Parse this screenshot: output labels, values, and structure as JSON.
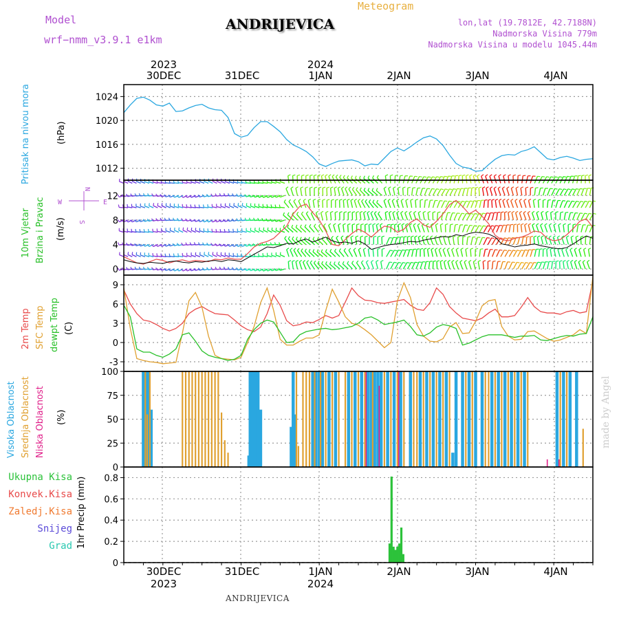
{
  "header": {
    "model_label": "Model",
    "model_name": "wrf−nmm_v3.9.1  e1km",
    "station": "ANDRIJEVICA",
    "meteogram": "Meteogram",
    "lonlat": "lon,lat (19.7812E, 42.7188N)",
    "elevation": "Nadmorska Visina 779m",
    "model_elevation": "Nadmorska Visina u modelu 1045.44m",
    "footer_station": "ANDRIJEVICA",
    "credit": "made by Angel"
  },
  "time_axis": {
    "day_labels": [
      "30DEC",
      "31DEC",
      "1JAN",
      "2JAN",
      "3JAN",
      "4JAN"
    ],
    "year_labels": [
      {
        "day_index": 0,
        "year": "2023"
      },
      {
        "day_index": 2,
        "year": "2024"
      }
    ]
  },
  "colors": {
    "pressure": "#2aa7e0",
    "temp": "#e84a4a",
    "sfc": "#e0a030",
    "dew": "#28c028",
    "high_cloud": "#2aa7e0",
    "mid_cloud": "#e0a030",
    "low_cloud": "#e0208a",
    "precip_total": "#2cc23a",
    "convective": "#e84a4a",
    "freezing": "#f07a30",
    "snow": "#5a4ad8",
    "graupel": "#28c8b0",
    "model": "#b050d0"
  },
  "chart_data": [
    {
      "type": "line",
      "panel": "pressure",
      "ylabel": [
        "Pritisak na nivou mora",
        "(hPa)"
      ],
      "ylim": [
        1010,
        1026
      ],
      "yticks": [
        1012,
        1016,
        1020,
        1024
      ],
      "grid": true,
      "series": [
        {
          "values_hours_0_to_72": [
            1021.3,
            1022.6,
            1023.7,
            1023.9,
            1023.4,
            1022.6,
            1022.4,
            1022.9,
            1021.5,
            1021.6,
            1022.1,
            1022.5,
            1022.7,
            1022.1,
            1021.8,
            1021.7,
            1020.5,
            1017.8,
            1017.2,
            1017.5,
            1018.8,
            1019.8,
            1019.8,
            1019.0,
            1018.1,
            1016.8,
            1015.9,
            1015.4,
            1014.8,
            1013.9,
            1012.7,
            1012.3,
            1012.8,
            1013.2,
            1013.3,
            1013.4,
            1013.1,
            1012.4,
            1012.7,
            1012.6,
            1013.7,
            1014.8,
            1015.4,
            1014.9,
            1015.6,
            1016.4,
            1017.1,
            1017.4,
            1016.9,
            1015.8,
            1014.2,
            1012.8,
            1012.2,
            1012.0,
            1011.5,
            1011.6,
            1012.6,
            1013.5,
            1014.1,
            1014.3,
            1014.2,
            1014.8,
            1015.1,
            1015.6,
            1014.6,
            1013.6,
            1013.4,
            1013.8,
            1014.0,
            1013.7,
            1013.3,
            1013.5,
            1013.6
          ]
        }
      ]
    },
    {
      "type": "line",
      "panel": "wind",
      "ylabel": [
        "10m Vjetar",
        "Brzina i Pravac",
        "(m/s)"
      ],
      "compass": {
        "n": "N",
        "s": "S",
        "w": "W",
        "e": "E"
      },
      "ylim": [
        -1,
        14.5
      ],
      "yticks": [
        0,
        4,
        8,
        12
      ],
      "grid": true,
      "series": [
        {
          "name": "speed",
          "values_hours_0_to_72": [
            1.5,
            1.2,
            1.0,
            0.9,
            1.1,
            1.0,
            0.9,
            1.2,
            1.3,
            1.1,
            1.0,
            1.2,
            1.1,
            1.3,
            1.4,
            1.2,
            1.5,
            1.4,
            1.2,
            1.8,
            2.4,
            3.0,
            3.6,
            3.5,
            3.8,
            4.2,
            4.1,
            4.6,
            4.9,
            4.4,
            4.8,
            5.2,
            4.6,
            4.3,
            4.4,
            4.2,
            4.6,
            4.1,
            3.2,
            3.5,
            3.8,
            4.0,
            4.1,
            4.3,
            4.5,
            4.4,
            4.7,
            4.9,
            5.1,
            5.3,
            5.2,
            5.6,
            5.4,
            5.8,
            6.0,
            5.9,
            5.7,
            5.2,
            4.1,
            3.9,
            3.6,
            3.8,
            3.9,
            4.1,
            3.8,
            3.6,
            3.4,
            3.3,
            3.5,
            4.1,
            4.8,
            5.4,
            5.0
          ]
        },
        {
          "name": "gust",
          "values_hours_0_to_72": [
            2.0,
            1.5,
            1.0,
            0.8,
            1.2,
            1.6,
            1.4,
            1.0,
            1.3,
            1.5,
            1.2,
            1.4,
            1.3,
            1.2,
            1.6,
            1.5,
            1.8,
            1.6,
            1.6,
            2.5,
            3.6,
            4.2,
            4.5,
            5.0,
            6.0,
            7.0,
            9.0,
            10.2,
            10.6,
            9.2,
            8.0,
            6.2,
            4.0,
            3.8,
            4.8,
            5.8,
            6.5,
            6.0,
            5.2,
            6.2,
            7.0,
            6.8,
            6.0,
            6.5,
            7.6,
            8.2,
            7.2,
            6.8,
            7.8,
            9.0,
            10.5,
            11.2,
            10.2,
            9.0,
            9.6,
            8.6,
            7.4,
            5.5,
            4.8,
            4.6,
            5.0,
            5.2,
            5.6,
            6.2,
            6.0,
            5.0,
            4.6,
            4.8,
            5.6,
            6.6,
            7.8,
            8.2,
            6.8
          ]
        }
      ]
    },
    {
      "type": "line",
      "panel": "temperature",
      "ylabel": [
        "2m Temp",
        "SFC Temp",
        "dewpt Temp",
        "(C)"
      ],
      "ylim": [
        -4.5,
        10.5
      ],
      "yticks": [
        -3,
        0,
        3,
        6,
        9
      ],
      "grid": true,
      "series": [
        {
          "name": "2m Temp",
          "values_hours_0_to_72": [
            8.2,
            6.0,
            4.5,
            3.5,
            3.3,
            2.8,
            2.2,
            1.8,
            2.2,
            3.0,
            4.5,
            5.2,
            5.6,
            5.0,
            4.5,
            4.4,
            4.3,
            3.5,
            2.6,
            2.0,
            1.7,
            2.4,
            4.5,
            7.4,
            5.8,
            3.4,
            2.6,
            2.8,
            3.2,
            3.1,
            3.6,
            4.2,
            3.8,
            4.2,
            6.3,
            8.5,
            7.3,
            6.6,
            6.5,
            6.2,
            6.1,
            6.3,
            6.5,
            6.7,
            5.8,
            5.2,
            5.0,
            6.2,
            8.5,
            7.5,
            5.6,
            4.6,
            3.8,
            3.6,
            3.4,
            3.8,
            4.6,
            5.2,
            4.0,
            4.0,
            4.2,
            5.5,
            7.0,
            5.6,
            4.8,
            4.6,
            4.6,
            4.4,
            4.8,
            5.0,
            4.6,
            4.8,
            9.6
          ]
        },
        {
          "name": "SFC Temp",
          "values_hours_0_to_72": [
            8.5,
            2.2,
            -2.5,
            -2.8,
            -3.0,
            -3.1,
            -3.3,
            -3.2,
            -3.1,
            1.5,
            6.5,
            7.8,
            5.5,
            1.0,
            -2.0,
            -2.5,
            -2.6,
            -2.7,
            -2.3,
            0.0,
            2.5,
            6.2,
            8.5,
            5.0,
            0.5,
            -0.4,
            -0.4,
            0.2,
            0.7,
            0.7,
            1.2,
            5.0,
            8.3,
            6.3,
            4.0,
            3.0,
            2.7,
            2.0,
            1.2,
            0.2,
            -0.8,
            0.0,
            6.5,
            9.3,
            7.0,
            2.8,
            1.0,
            0.2,
            0.1,
            0.6,
            2.4,
            3.1,
            1.4,
            1.5,
            3.3,
            5.7,
            6.5,
            6.7,
            2.5,
            1.0,
            0.4,
            0.5,
            1.7,
            1.8,
            1.2,
            0.6,
            0.2,
            0.4,
            0.8,
            1.2,
            2.0,
            1.4,
            10.3
          ]
        },
        {
          "name": "dewpt Temp",
          "values_hours_0_to_72": [
            5.8,
            4.0,
            -1.0,
            -1.5,
            -1.5,
            -2.0,
            -2.3,
            -1.8,
            -1.0,
            1.2,
            1.5,
            0.2,
            -1.3,
            -2.0,
            -2.3,
            -2.5,
            -2.8,
            -2.6,
            -2.0,
            0.5,
            2.0,
            3.0,
            3.5,
            3.2,
            1.6,
            0.0,
            0.1,
            1.2,
            1.7,
            1.9,
            2.1,
            2.2,
            2.0,
            2.1,
            2.3,
            2.5,
            3.0,
            3.8,
            4.0,
            3.5,
            2.8,
            3.0,
            3.2,
            3.5,
            2.5,
            1.2,
            1.0,
            1.5,
            2.4,
            2.8,
            2.6,
            2.2,
            -0.4,
            -0.1,
            0.4,
            0.9,
            1.2,
            1.2,
            1.2,
            1.0,
            0.8,
            1.0,
            1.0,
            1.1,
            0.4,
            0.3,
            0.6,
            0.9,
            1.1,
            1.0,
            1.3,
            1.4,
            4.0
          ]
        }
      ]
    },
    {
      "type": "bar",
      "panel": "cloud",
      "ylabel": [
        "Visoka Oblacnost",
        "Srednja Oblacnost",
        "Niska Oblacnost",
        "(%)"
      ],
      "ylim": [
        0,
        100
      ],
      "yticks": [
        0,
        25,
        50,
        75,
        100
      ],
      "grid": true,
      "series": [
        {
          "name": "Visoka Oblacnost",
          "bars": [
            [
              3.0,
              100
            ],
            [
              3.5,
              100
            ],
            [
              3.8,
              100
            ],
            [
              4.2,
              60
            ],
            [
              19.2,
              12
            ],
            [
              19.4,
              100
            ],
            [
              19.8,
              100
            ],
            [
              20.2,
              100
            ],
            [
              20.6,
              100
            ],
            [
              21.0,
              60
            ],
            [
              25.7,
              42
            ],
            [
              26.0,
              100
            ],
            [
              26.3,
              55
            ],
            [
              29.0,
              100
            ],
            [
              29.5,
              100
            ],
            [
              30.0,
              100
            ],
            [
              30.5,
              100
            ],
            [
              31.5,
              100
            ],
            [
              32.5,
              100
            ],
            [
              34.5,
              100
            ],
            [
              35.5,
              100
            ],
            [
              36.5,
              100
            ],
            [
              37.5,
              100
            ],
            [
              38.0,
              100
            ],
            [
              38.5,
              100
            ],
            [
              39.0,
              100
            ],
            [
              39.5,
              100
            ],
            [
              40.5,
              100
            ],
            [
              41.5,
              100
            ],
            [
              42.5,
              100
            ],
            [
              44.0,
              100
            ],
            [
              45.5,
              100
            ],
            [
              46.5,
              100
            ],
            [
              47.5,
              100
            ],
            [
              48.5,
              100
            ],
            [
              49.5,
              100
            ],
            [
              50.5,
              15
            ],
            [
              51.0,
              100
            ],
            [
              52.0,
              100
            ],
            [
              53.0,
              100
            ],
            [
              54.0,
              100
            ],
            [
              55.0,
              100
            ],
            [
              56.5,
              100
            ],
            [
              57.5,
              100
            ],
            [
              58.5,
              100
            ],
            [
              59.5,
              100
            ],
            [
              60.5,
              100
            ],
            [
              61.5,
              100
            ],
            [
              66.5,
              100
            ],
            [
              67.5,
              100
            ],
            [
              68.5,
              100
            ],
            [
              69.5,
              100
            ]
          ]
        },
        {
          "name": "Srednja Oblacnost",
          "bars": [
            [
              3.3,
              100
            ],
            [
              3.6,
              55
            ],
            [
              4.0,
              100
            ],
            [
              9.0,
              100
            ],
            [
              9.5,
              100
            ],
            [
              10.0,
              100
            ],
            [
              10.5,
              100
            ],
            [
              11.0,
              100
            ],
            [
              11.5,
              100
            ],
            [
              12.0,
              100
            ],
            [
              12.5,
              100
            ],
            [
              13.0,
              100
            ],
            [
              13.5,
              100
            ],
            [
              14.0,
              100
            ],
            [
              14.5,
              100
            ],
            [
              15.0,
              57
            ],
            [
              15.5,
              28
            ],
            [
              16.0,
              15
            ],
            [
              26.5,
              100
            ],
            [
              26.8,
              22
            ],
            [
              27.5,
              100
            ],
            [
              28.0,
              100
            ],
            [
              28.5,
              100
            ],
            [
              29.3,
              100
            ],
            [
              30.2,
              100
            ],
            [
              31.0,
              100
            ],
            [
              32.0,
              100
            ],
            [
              33.0,
              100
            ],
            [
              34.0,
              100
            ],
            [
              35.0,
              100
            ],
            [
              36.0,
              100
            ],
            [
              37.0,
              100
            ],
            [
              38.2,
              100
            ],
            [
              40.0,
              100
            ],
            [
              41.0,
              100
            ],
            [
              42.0,
              100
            ],
            [
              43.0,
              100
            ],
            [
              44.5,
              100
            ],
            [
              45.0,
              100
            ],
            [
              46.0,
              100
            ],
            [
              47.0,
              100
            ],
            [
              48.0,
              100
            ],
            [
              49.0,
              100
            ],
            [
              50.0,
              100
            ],
            [
              52.5,
              100
            ],
            [
              53.5,
              100
            ],
            [
              55.5,
              100
            ],
            [
              56.0,
              100
            ],
            [
              57.0,
              100
            ],
            [
              58.0,
              100
            ],
            [
              59.0,
              100
            ],
            [
              60.0,
              100
            ],
            [
              61.0,
              100
            ],
            [
              62.0,
              100
            ],
            [
              67.0,
              100
            ],
            [
              68.0,
              100
            ],
            [
              70.5,
              40
            ]
          ]
        },
        {
          "name": "Niska Oblacnost",
          "bars": [
            [
              37.2,
              100
            ],
            [
              39.2,
              85
            ],
            [
              42.2,
              100
            ],
            [
              65.0,
              8
            ],
            [
              66.8,
              8
            ]
          ]
        }
      ]
    },
    {
      "type": "bar",
      "panel": "precip",
      "ylabel": [
        "1hr Precip (mm)"
      ],
      "legend": [
        "Ukupna Kisa",
        "Konvek.Kisa",
        "Zaledj.Kisa",
        "Snijeg",
        "Grad"
      ],
      "ylim": [
        0,
        0.9
      ],
      "yticks": [
        0,
        0.2,
        0.4,
        0.6,
        0.8
      ],
      "grid": true,
      "series": [
        {
          "name": "Ukupna Kisa",
          "bars": [
            [
              40.8,
              0.18
            ],
            [
              41.1,
              0.81
            ],
            [
              41.4,
              0.15
            ],
            [
              41.7,
              0.12
            ],
            [
              42.0,
              0.15
            ],
            [
              42.3,
              0.18
            ],
            [
              42.6,
              0.33
            ],
            [
              42.9,
              0.08
            ]
          ]
        }
      ]
    }
  ]
}
